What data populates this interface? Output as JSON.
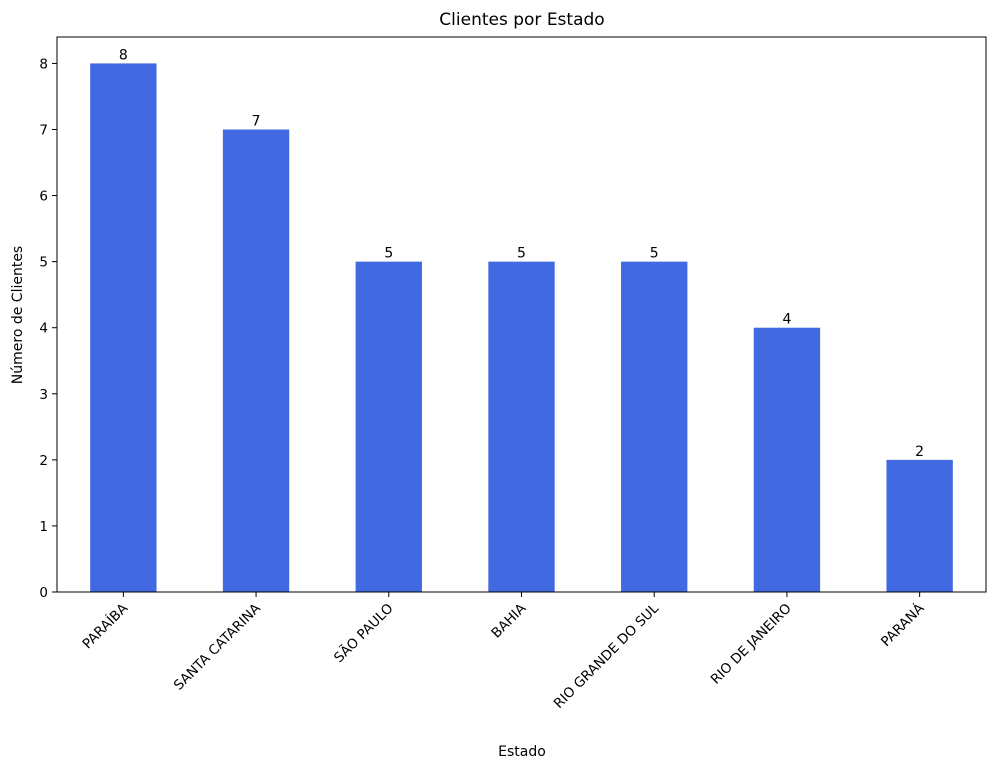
{
  "chart_data": {
    "type": "bar",
    "title": "Clientes por Estado",
    "xlabel": "Estado",
    "ylabel": "Número de Clientes",
    "categories": [
      "PARAÍBA",
      "SANTA CATARINA",
      "SÃO PAULO",
      "BAHIA",
      "RIO GRANDE DO SUL",
      "RIO DE JANEIRO",
      "PARANÁ"
    ],
    "values": [
      8,
      7,
      5,
      5,
      5,
      4,
      2
    ],
    "ylim": [
      0,
      8.4
    ],
    "yticks": [
      0,
      1,
      2,
      3,
      4,
      5,
      6,
      7,
      8
    ],
    "bar_color": "#4169e1",
    "grid": false,
    "legend": "none",
    "data_labels": true
  }
}
